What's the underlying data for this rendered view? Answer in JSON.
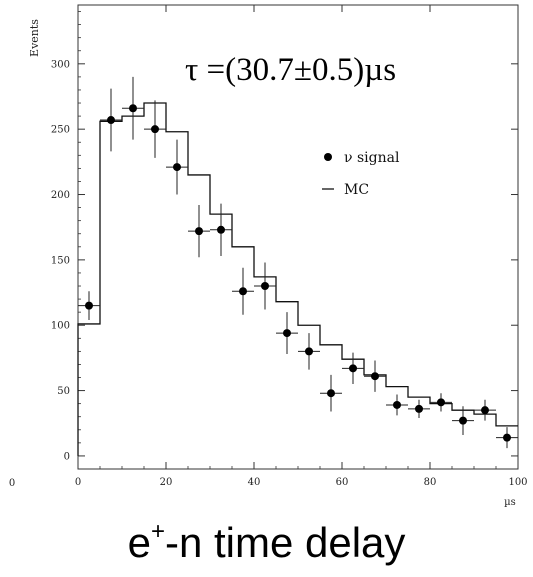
{
  "chart_data": {
    "type": "scatter",
    "title": "",
    "ylabel": "Events",
    "xlabel": "µs",
    "xlim": [
      0,
      100
    ],
    "ylim": [
      -10,
      345
    ],
    "x_ticks": [
      0,
      20,
      40,
      60,
      80,
      100
    ],
    "y_ticks": [
      0,
      50,
      100,
      150,
      200,
      250,
      300
    ],
    "outer_x_tick_label": "0",
    "annotation": "τ =(30.7±0.5)µs",
    "legend_position": "right",
    "series": [
      {
        "name": "ν signal",
        "style": "points-with-error-bars",
        "bin_width": 5,
        "x": [
          2.5,
          7.5,
          12.5,
          17.5,
          22.5,
          27.5,
          32.5,
          37.5,
          42.5,
          47.5,
          52.5,
          57.5,
          62.5,
          67.5,
          72.5,
          77.5,
          82.5,
          87.5,
          92.5,
          97.5
        ],
        "y": [
          115,
          257,
          266,
          250,
          221,
          172,
          173,
          126,
          130,
          94,
          80,
          48,
          67,
          61,
          39,
          36,
          41,
          27,
          35,
          14
        ],
        "yerr": [
          11,
          24,
          24,
          22,
          21,
          20,
          20,
          18,
          18,
          16,
          14,
          14,
          12,
          12,
          8,
          7,
          7,
          11,
          8,
          8
        ]
      },
      {
        "name": "MC",
        "style": "histogram-step",
        "bin_edges": [
          0,
          5,
          10,
          15,
          20,
          25,
          30,
          35,
          40,
          45,
          50,
          55,
          60,
          65,
          70,
          75,
          80,
          85,
          90,
          95,
          100
        ],
        "y": [
          101,
          256,
          260,
          270,
          248,
          215,
          185,
          160,
          137,
          118,
          100,
          85,
          74,
          62,
          53,
          45,
          40,
          35,
          32,
          23
        ]
      }
    ],
    "caption": "e⁺-n time delay"
  }
}
